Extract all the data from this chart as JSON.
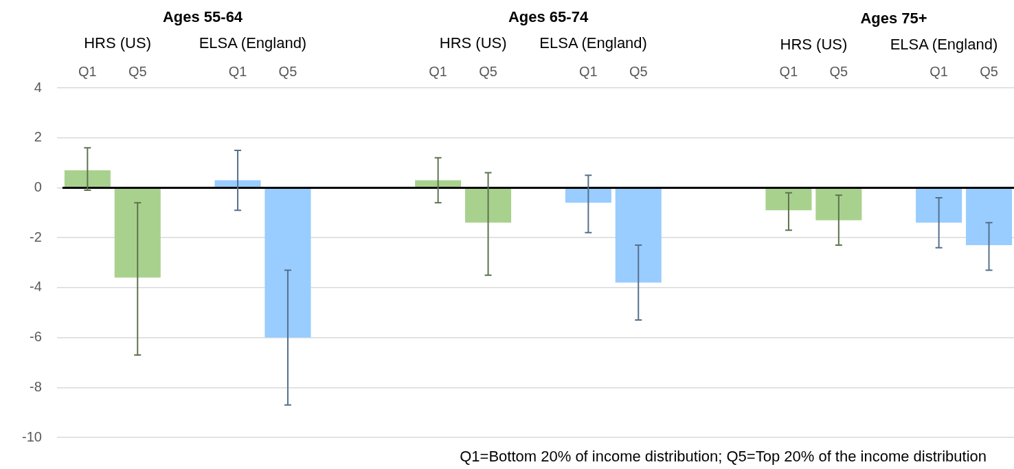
{
  "chart_data": {
    "type": "bar",
    "categories": [
      "Q1",
      "Q5",
      null,
      "Q1",
      "Q5",
      null,
      null,
      "Q1",
      "Q5",
      null,
      "Q1",
      "Q5",
      null,
      null,
      "Q1",
      "Q5",
      null,
      "Q1",
      "Q5"
    ],
    "series": [
      {
        "color": "#a9d18e",
        "values": [
          0.7,
          -3.6,
          null,
          null,
          null,
          null,
          null,
          0.3,
          -1.4,
          null,
          null,
          null,
          null,
          null,
          -0.9,
          -1.3,
          null,
          null,
          null
        ],
        "errors": [
          [
            -0.1,
            1.6
          ],
          [
            -6.7,
            -0.6
          ],
          null,
          null,
          null,
          null,
          null,
          [
            -0.6,
            1.2
          ],
          [
            -3.5,
            0.6
          ],
          null,
          null,
          null,
          null,
          null,
          [
            -1.7,
            -0.2
          ],
          [
            -2.3,
            -0.3
          ],
          null,
          null,
          null
        ]
      },
      {
        "color": "#99ccff",
        "values": [
          null,
          null,
          null,
          0.3,
          -6.0,
          null,
          null,
          null,
          null,
          null,
          -0.6,
          -3.8,
          null,
          null,
          null,
          null,
          null,
          -1.4,
          -2.3
        ],
        "errors": [
          null,
          null,
          null,
          [
            -0.9,
            1.5
          ],
          [
            -8.7,
            -3.3
          ],
          null,
          null,
          null,
          null,
          null,
          [
            -1.8,
            0.5
          ],
          [
            -5.3,
            -2.3
          ],
          null,
          null,
          null,
          null,
          null,
          [
            -2.4,
            -0.4
          ],
          [
            -3.3,
            -1.4
          ]
        ]
      }
    ],
    "ylim": [
      -10,
      4
    ],
    "yticks": [
      4,
      2,
      0,
      -2,
      -4,
      -6,
      -8,
      -10
    ],
    "grid": "y",
    "legend": false,
    "annotations": [
      "Ages 55-64",
      "HRS (US)",
      "ELSA (England)",
      "Ages 65-74",
      "HRS (US)",
      "ELSA (England)",
      "Ages 75+",
      "HRS (US)",
      "ELSA (England)",
      "Q1=Bottom 20% of income distribution;   Q5=Top 20% of the income distribution"
    ]
  }
}
